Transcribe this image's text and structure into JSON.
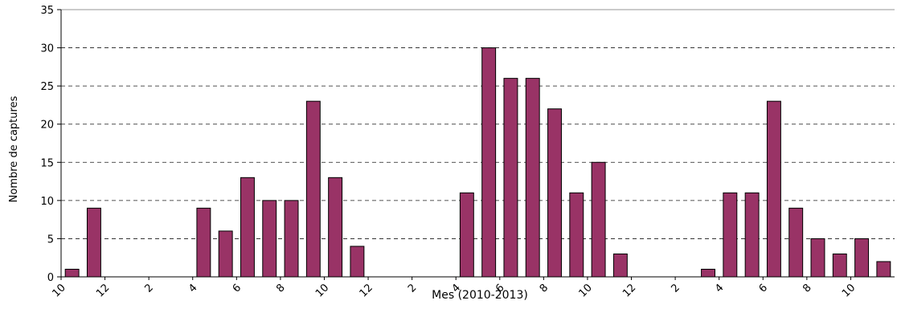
{
  "chart_data": {
    "type": "bar",
    "xlabel": "Mes (2010-2013)",
    "ylabel": "Nombre de captures",
    "ylim": [
      0,
      35
    ],
    "yticks": [
      0,
      5,
      10,
      15,
      20,
      25,
      30,
      35
    ],
    "grid": "horizontal-dashed",
    "bar_color": "#993366",
    "x_tick_labels": [
      "10",
      "12",
      "2",
      "4",
      "6",
      "8",
      "10",
      "12",
      "2",
      "4",
      "6",
      "8",
      "10",
      "12",
      "2",
      "4",
      "6",
      "8",
      "10"
    ],
    "values": [
      1,
      9,
      0,
      0,
      0,
      0,
      9,
      6,
      13,
      10,
      10,
      23,
      13,
      4,
      0,
      0,
      0,
      0,
      11,
      30,
      26,
      26,
      22,
      11,
      15,
      3,
      0,
      0,
      0,
      1,
      11,
      11,
      23,
      9,
      5,
      3,
      5,
      2
    ]
  }
}
